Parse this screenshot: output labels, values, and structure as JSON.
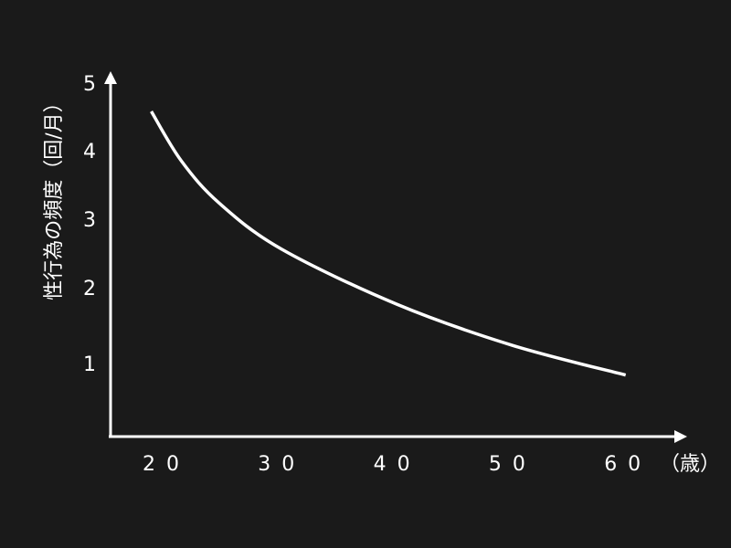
{
  "chart_data": {
    "type": "line",
    "title": "",
    "xlabel": "",
    "x_unit_suffix": "（歳）",
    "ylabel": "性行為の頻度（回/月）",
    "xticks": [
      "20",
      "30",
      "40",
      "50",
      "60"
    ],
    "xtick_values": [
      20,
      30,
      40,
      50,
      60
    ],
    "yticks": [
      "1",
      "2",
      "3",
      "4",
      "5"
    ],
    "ytick_values": [
      1,
      2,
      3,
      4,
      5
    ],
    "xlim": [
      15,
      65
    ],
    "ylim": [
      0,
      5
    ],
    "grid": false,
    "series": [
      {
        "x": [
          18.7,
          21.3,
          24.6,
          30,
          40,
          50,
          59.8
        ],
        "y": [
          4.6,
          3.9,
          3.3,
          2.65,
          1.87,
          1.29,
          0.87
        ]
      }
    ],
    "colors": {
      "background": "#1a1a1a",
      "line": "#ffffff",
      "axis": "#ffffff"
    }
  }
}
